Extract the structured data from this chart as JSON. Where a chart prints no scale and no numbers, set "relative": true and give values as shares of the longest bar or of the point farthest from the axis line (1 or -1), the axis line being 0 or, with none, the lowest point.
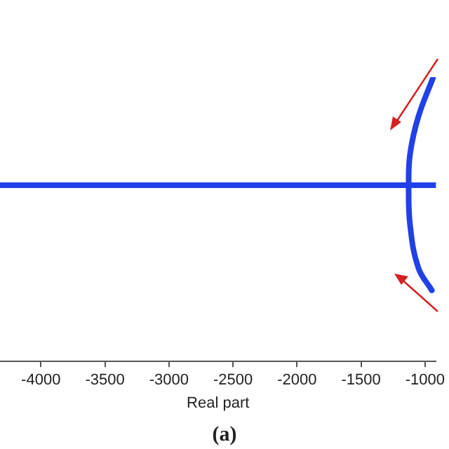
{
  "chart_data": {
    "type": "line",
    "xlabel": "Real part",
    "annotations": [
      "(a)"
    ],
    "relative": true,
    "xlim": [
      -4319,
      -915
    ],
    "xticks": [
      -4000,
      -3500,
      -3000,
      -2500,
      -2000,
      -1500,
      -1000
    ],
    "tick_labels": "x",
    "grid": false,
    "legend": false,
    "marker": "none",
    "line_style": "solid",
    "series": [
      {
        "color": "#2040e8",
        "x": [
          -4319,
          -3000,
          -2000,
          -1128,
          -915
        ],
        "values": [
          0.62,
          0.62,
          0.62,
          0.62,
          0.62
        ]
      },
      {
        "color": "#2040e8",
        "x": [
          -936,
          -1053,
          -1117,
          -1128,
          -1117,
          -1053,
          -947
        ],
        "values": [
          1,
          0.86,
          0.73,
          0.62,
          0.48,
          0.33,
          0.25
        ]
      }
    ]
  }
}
